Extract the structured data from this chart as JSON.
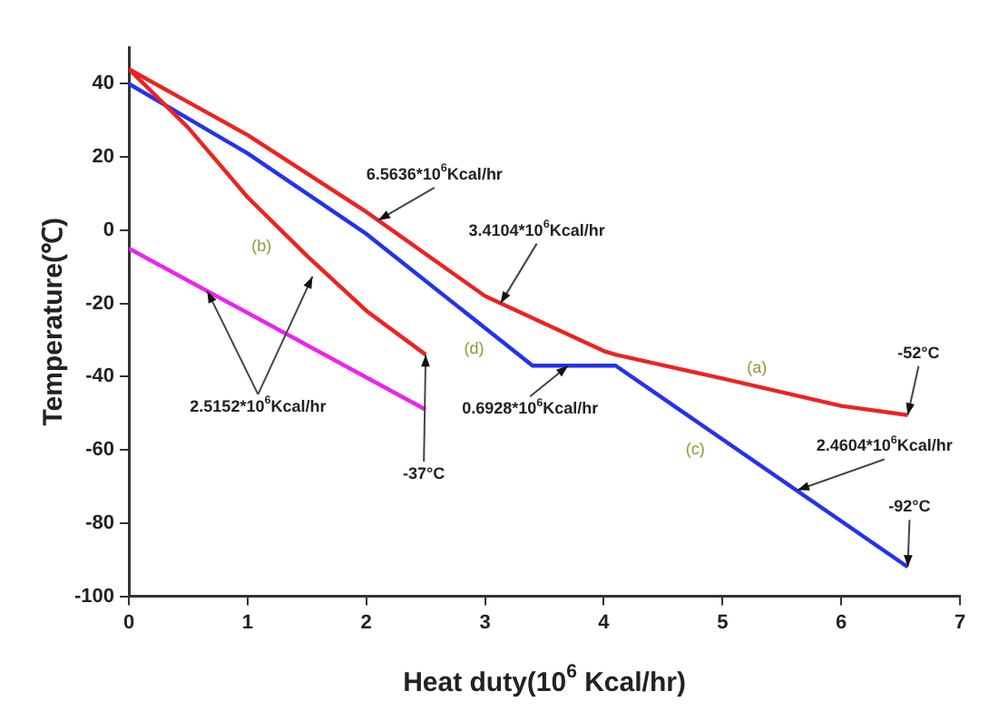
{
  "chart_data": {
    "type": "line",
    "xlabel": "Heat duty(10$^{6}$ Kcal/hr)",
    "ylabel": "Temperature(℃)",
    "xlim": [
      0,
      7
    ],
    "xticks": [
      0,
      1,
      2,
      3,
      4,
      5,
      6,
      7
    ],
    "ylim": [
      -100,
      50
    ],
    "yticks": [
      -100,
      -80,
      -60,
      -40,
      -20,
      0,
      20,
      40
    ],
    "grid": false,
    "legend": false,
    "marker": "none",
    "line_style": "solid",
    "series": [
      {
        "color": "#ee2222",
        "x": [
          0,
          0.5,
          1,
          2,
          3,
          4,
          4.1,
          5,
          6,
          6.56
        ],
        "values": [
          44,
          35,
          26,
          5,
          -18,
          -33,
          -34,
          -40.5,
          -48,
          -50.5
        ]
      },
      {
        "color": "#ee2222",
        "x": [
          0,
          0.5,
          1,
          1.5,
          2,
          2.5
        ],
        "values": [
          44,
          28,
          9,
          -7,
          -22,
          -34
        ]
      },
      {
        "color": "#2233ee",
        "x": [
          0,
          1,
          2,
          3.4,
          4.1,
          6.56
        ],
        "values": [
          40,
          21,
          -1,
          -37,
          -37,
          -92
        ]
      },
      {
        "color": "#ee22ee",
        "x": [
          0,
          2.5
        ],
        "values": [
          -5,
          -49
        ]
      }
    ],
    "annotations": [
      {
        "text": "6.5636*10$^{6}$Kcal/hr",
        "x": 2.1,
        "y": 2.7
      },
      {
        "text": "3.4104*10$^{6}$Kcal/hr",
        "x": 3.13,
        "y": -20
      },
      {
        "text": "2.5152*10$^{6}$Kcal/hr",
        "x": 0.66,
        "y": -16.6
      },
      {
        "text": "0.6928*10$^{6}$Kcal/hr",
        "x": 3.7,
        "y": -37
      },
      {
        "text": "-37°C",
        "x": 2.5,
        "y": -34
      },
      {
        "text": "-52°C",
        "x": 6.56,
        "y": -50.5
      },
      {
        "text": "2.4604*10$^{6}$Kcal/hr",
        "x": 5.63,
        "y": -71
      },
      {
        "text": "-92°C",
        "x": 6.56,
        "y": -92
      },
      {
        "text": "(a)",
        "x": 5.29,
        "y": -42.7
      },
      {
        "text": "(b)",
        "x": 1.3,
        "y": -2
      },
      {
        "text": "(c)",
        "x": 5.0,
        "y": -57
      },
      {
        "text": "(d)",
        "x": 2.8,
        "y": -21.6
      }
    ]
  }
}
